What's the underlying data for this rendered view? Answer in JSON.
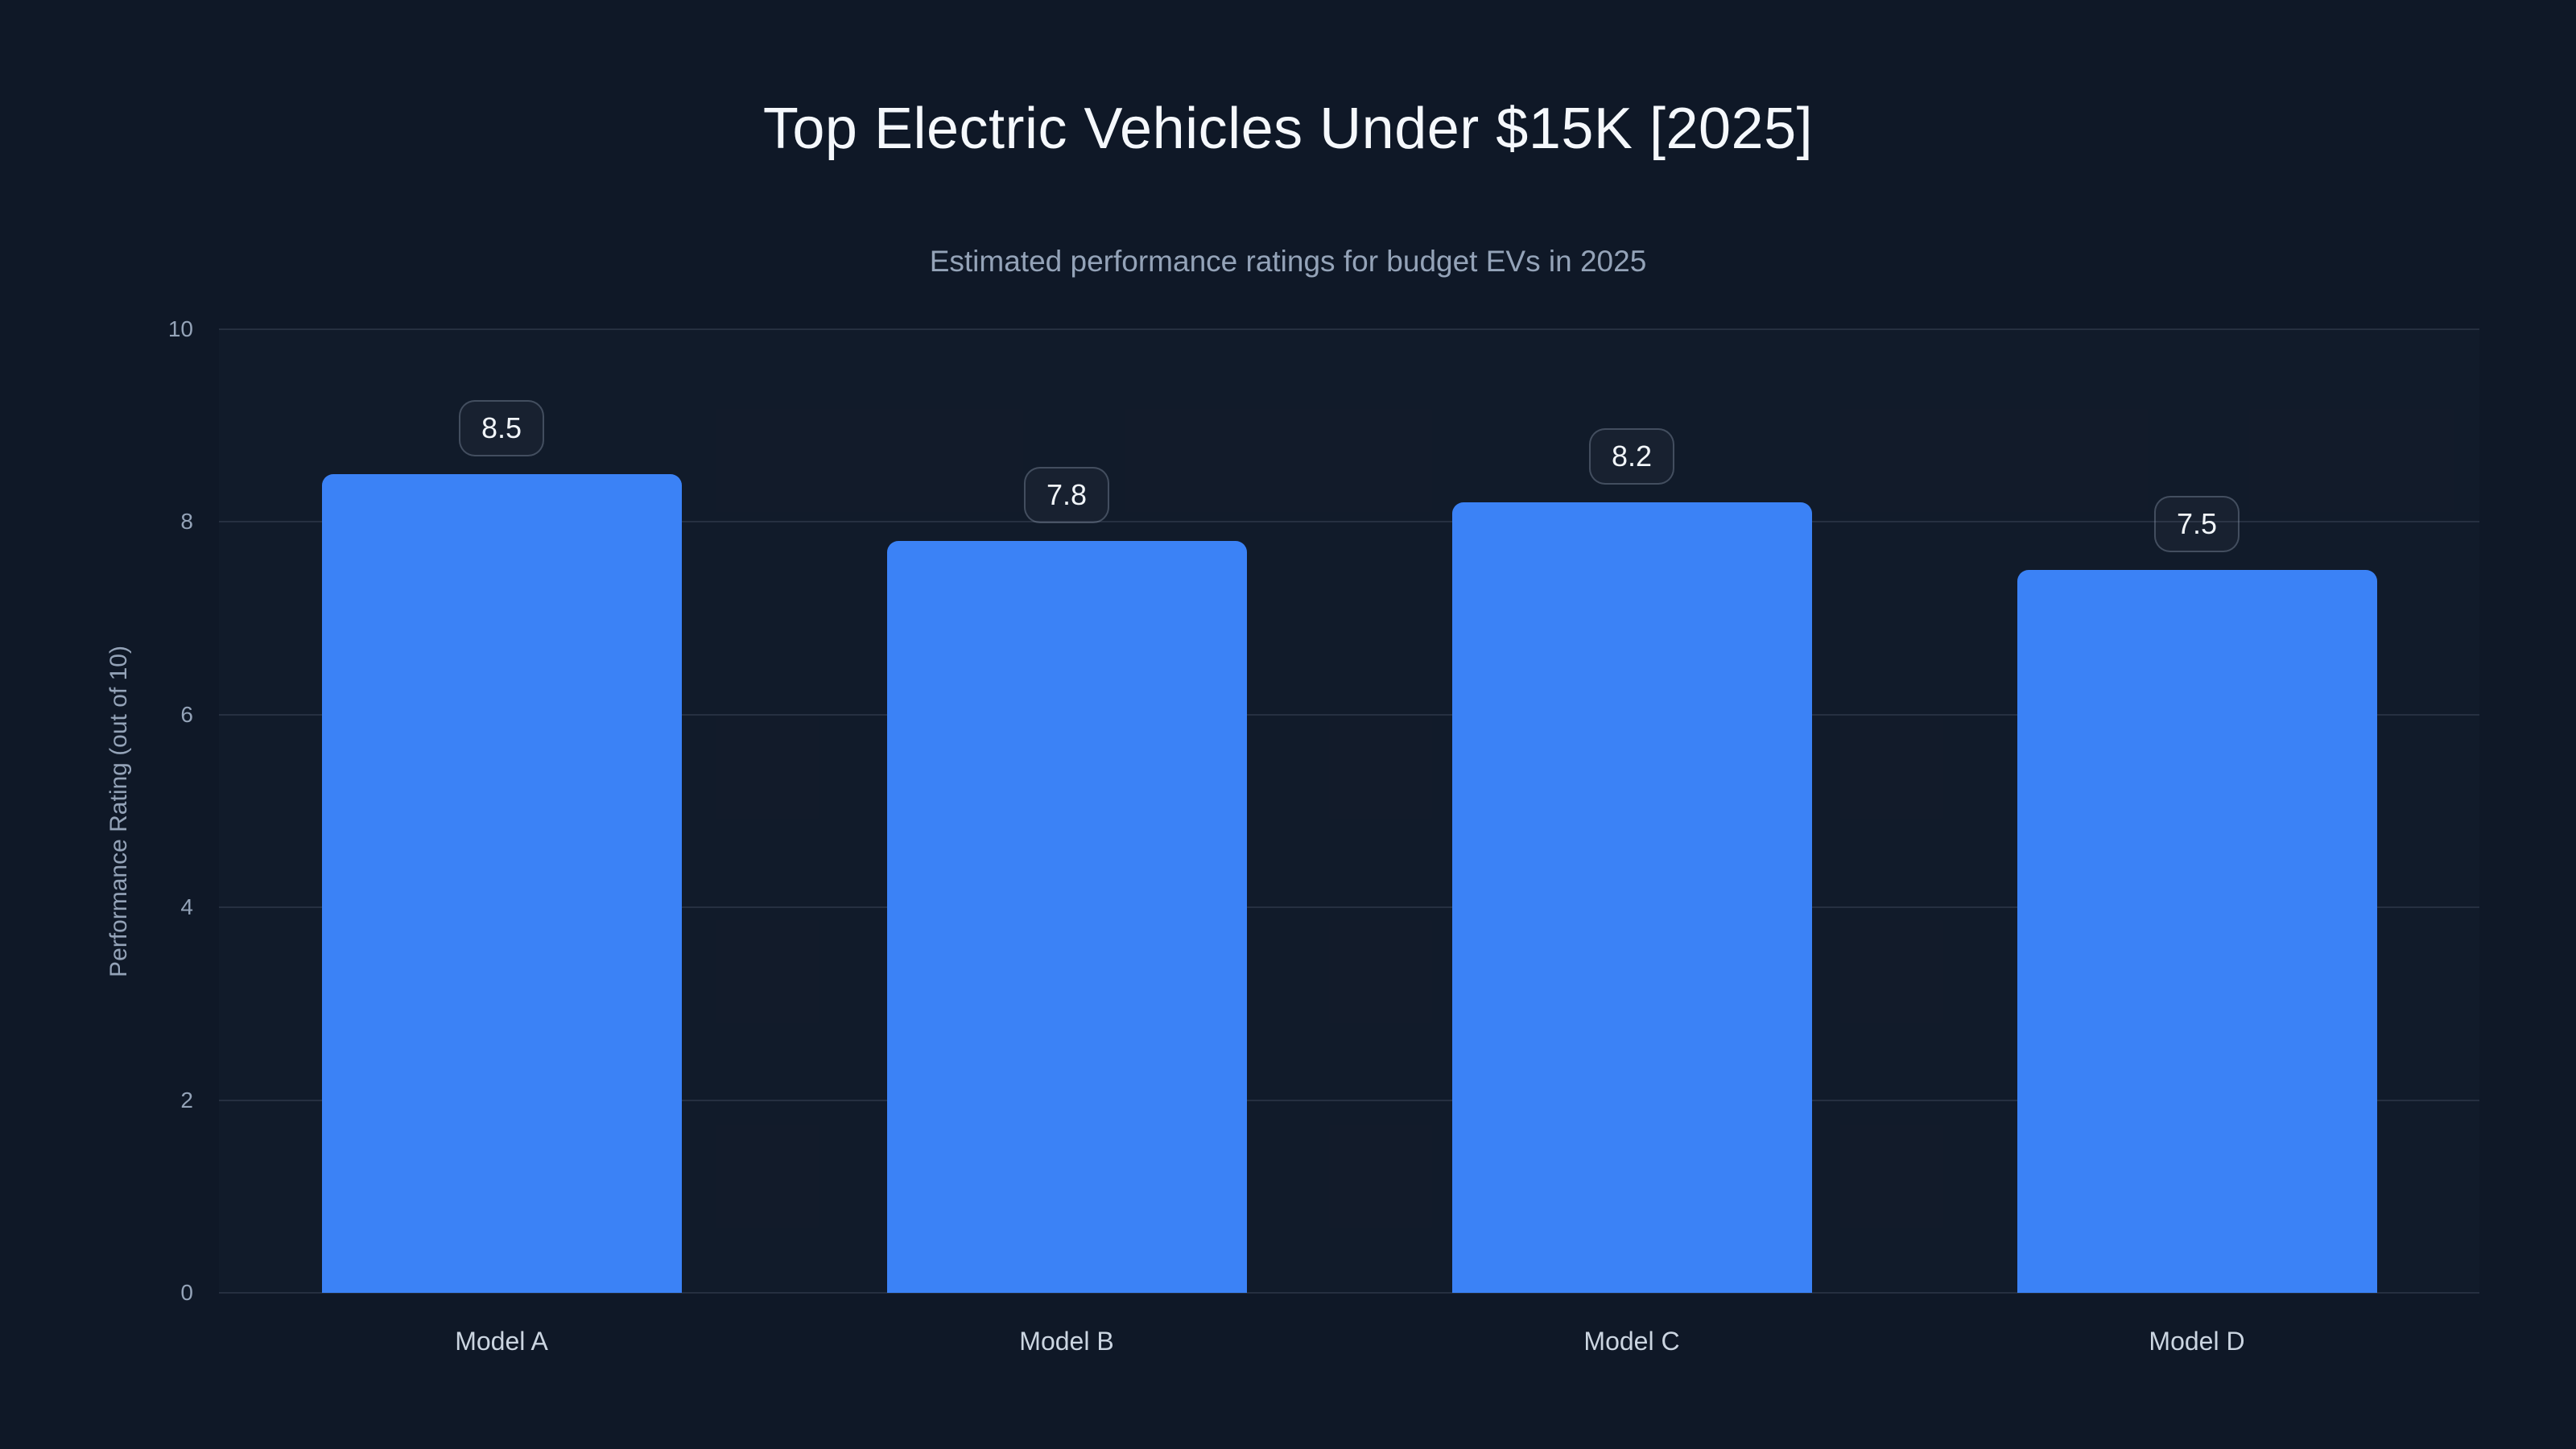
{
  "chart_data": {
    "type": "bar",
    "title": "Top Electric Vehicles Under $15K [2025]",
    "subtitle": "Estimated performance ratings for budget EVs in 2025",
    "categories": [
      "Model A",
      "Model B",
      "Model C",
      "Model D"
    ],
    "values": [
      8.5,
      7.8,
      8.2,
      7.5
    ],
    "value_labels": [
      "8.5",
      "7.8",
      "8.2",
      "7.5"
    ],
    "xlabel": "",
    "ylabel": "Performance Rating (out of 10)",
    "ylim": [
      0,
      10
    ],
    "yticks": [
      0,
      2,
      4,
      6,
      8,
      10
    ],
    "grid": true,
    "legend": "none",
    "bar_color": "#3b82f6",
    "background_color": "#0f1827",
    "title_color": "#f5f8fc",
    "subtitle_color": "#94a3b8",
    "axis_text_color": "#94a3b8",
    "category_text_color": "#cbd5e1",
    "gridline_color": "rgba(148,163,184,0.16)"
  }
}
